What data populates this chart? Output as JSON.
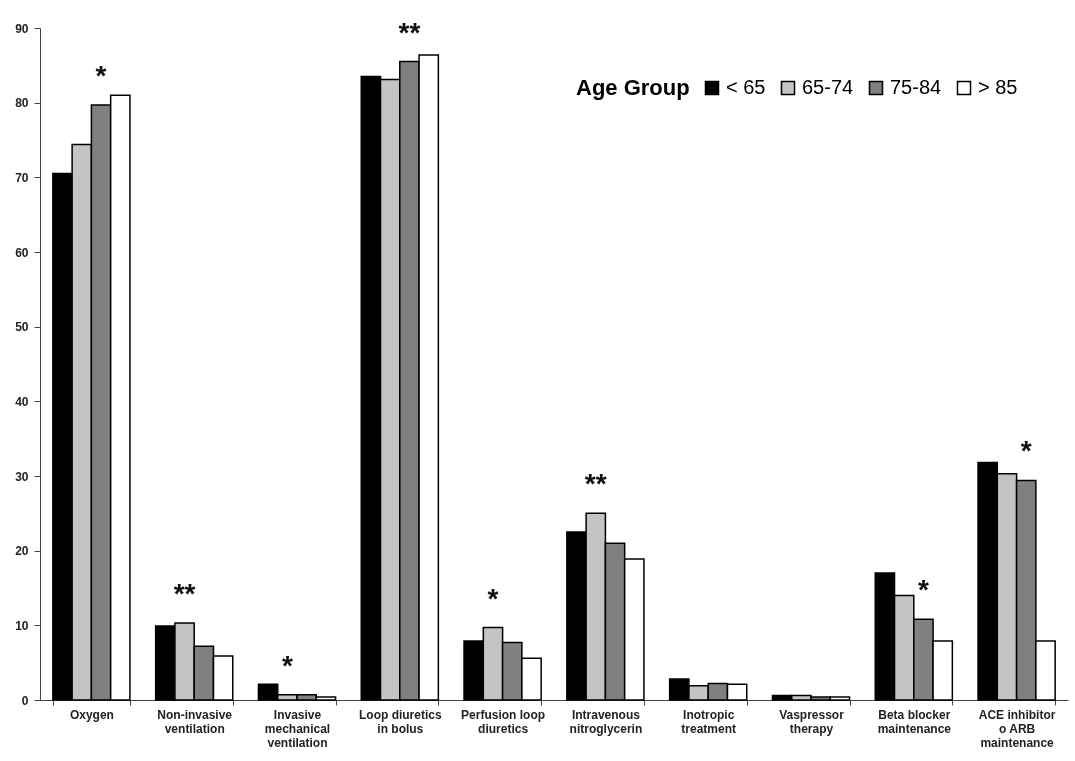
{
  "chart_data": {
    "type": "bar",
    "categories": [
      "Oxygen",
      "Non-invasive ventilation",
      "Invasive mechanical ventilation",
      "Loop diuretics in bolus",
      "Perfusion loop diuretics",
      "Intravenous nitroglycerin",
      "Inotropic treatment",
      "Vaspressor therapy",
      "Beta blocker maintenance",
      "ACE inhibitor o ARB maintenance"
    ],
    "series": [
      {
        "name": "< 65",
        "color": "#000000",
        "values": [
          70.5,
          9.9,
          2.1,
          83.5,
          7.9,
          22.5,
          2.8,
          0.6,
          17.0,
          31.8
        ]
      },
      {
        "name": "65-74",
        "color": "#c4c4c4",
        "values": [
          74.4,
          10.3,
          0.7,
          83.1,
          9.7,
          25.0,
          1.9,
          0.6,
          14.0,
          30.3
        ]
      },
      {
        "name": "75-84",
        "color": "#808080",
        "values": [
          79.7,
          7.2,
          0.7,
          85.5,
          7.7,
          21.0,
          2.2,
          0.4,
          10.8,
          29.4
        ]
      },
      {
        "name": "> 85",
        "color": "#ffffff",
        "values": [
          81.0,
          5.9,
          0.4,
          86.4,
          5.6,
          18.9,
          2.1,
          0.4,
          7.9,
          7.9
        ]
      }
    ],
    "ylim": [
      0,
      90
    ],
    "yticks": [
      0,
      10,
      20,
      30,
      40,
      50,
      60,
      70,
      80,
      90
    ],
    "legend": "top right",
    "legend_title": "Age Group",
    "annotations": [
      {
        "text": "*",
        "x": "Oxygen",
        "y": 79.7
      },
      {
        "text": "**",
        "x": "Non-invasive ventilation",
        "y": 10.3
      },
      {
        "text": "*",
        "x": "Invasive mechanical ventilation",
        "y": 0.7
      },
      {
        "text": "**",
        "x": "Loop diuretics in bolus",
        "y": 85.5
      },
      {
        "text": "*",
        "x": "Perfusion loop diuretics",
        "y": 9.7
      },
      {
        "text": "**",
        "x": "Intravenous nitroglycerin",
        "y": 25.0
      },
      {
        "text": "*",
        "x": "Beta blocker maintenance",
        "y": 10.8
      },
      {
        "text": "*",
        "x": "ACE inhibitor o ARB maintenance",
        "y": 29.4
      }
    ]
  }
}
